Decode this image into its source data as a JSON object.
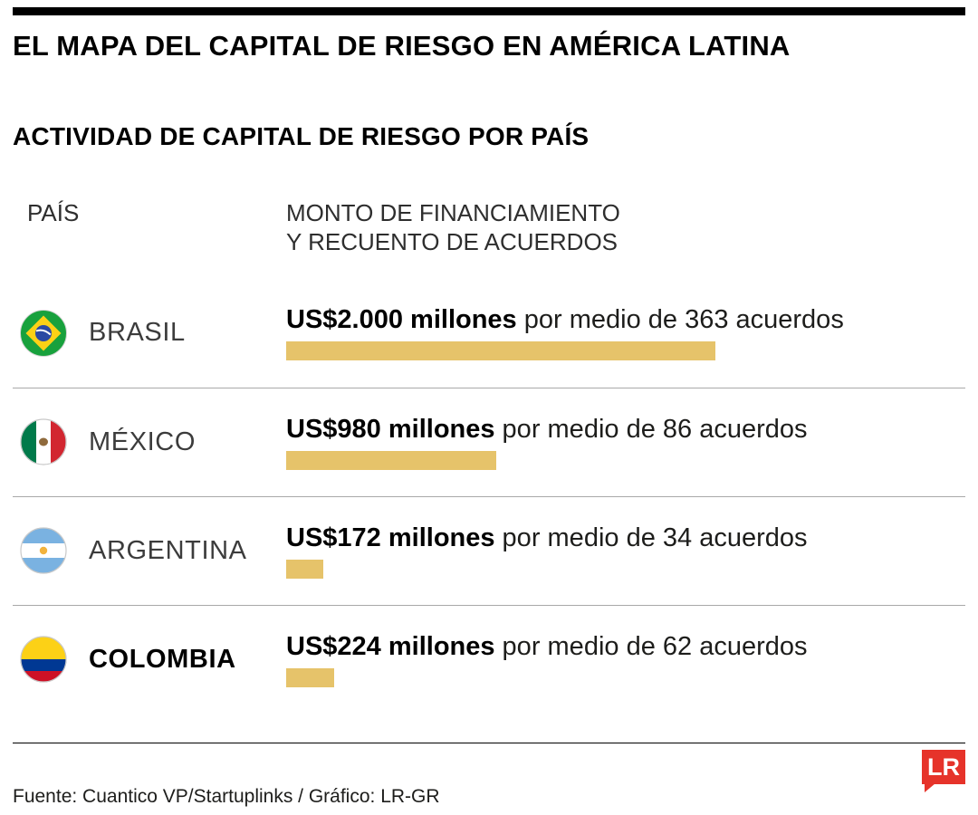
{
  "brand_color": "#e6332a",
  "bar_color": "#e6c36a",
  "header": {
    "title": "EL MAPA DEL CAPITAL DE RIESGO EN AMÉRICA LATINA",
    "subtitle": "ACTIVIDAD DE CAPITAL DE RIESGO POR PAÍS"
  },
  "columns": {
    "country": "PAÍS",
    "amount_line1": "MONTO DE FINANCIAMIENTO",
    "amount_line2": "Y RECUENTO DE ACUERDOS"
  },
  "rows": [
    {
      "country": "BRASIL",
      "amount_bold": "US$2.000 millones",
      "amount_rest": " por medio de 363 acuerdos",
      "value_musd": 2000,
      "deals": 363,
      "flag": "brazil-flag"
    },
    {
      "country": "MÉXICO",
      "amount_bold": "US$980 millones",
      "amount_rest": " por medio de 86 acuerdos",
      "value_musd": 980,
      "deals": 86,
      "flag": "mexico-flag"
    },
    {
      "country": "ARGENTINA",
      "amount_bold": "US$172 millones",
      "amount_rest": " por medio de 34 acuerdos",
      "value_musd": 172,
      "deals": 34,
      "flag": "argentina-flag"
    },
    {
      "country": "COLOMBIA",
      "amount_bold": "US$224 millones",
      "amount_rest": " por medio de 62 acuerdos",
      "value_musd": 224,
      "deals": 62,
      "flag": "colombia-flag"
    }
  ],
  "chart_data": {
    "type": "bar",
    "orientation": "horizontal",
    "title": "ACTIVIDAD DE CAPITAL DE RIESGO POR PAÍS",
    "categories": [
      "BRASIL",
      "MÉXICO",
      "ARGENTINA",
      "COLOMBIA"
    ],
    "series": [
      {
        "name": "Monto de financiamiento (US$ millones)",
        "values": [
          2000,
          980,
          172,
          224
        ]
      },
      {
        "name": "Recuento de acuerdos",
        "values": [
          363,
          86,
          34,
          62
        ]
      }
    ],
    "xlim": [
      0,
      2000
    ],
    "grid": false,
    "legend": "none",
    "bar_color": "#e6c36a"
  },
  "footer": {
    "source": "Fuente: Cuantico VP/Startuplinks / Gráfico: LR-GR",
    "logo_text": "LR"
  }
}
